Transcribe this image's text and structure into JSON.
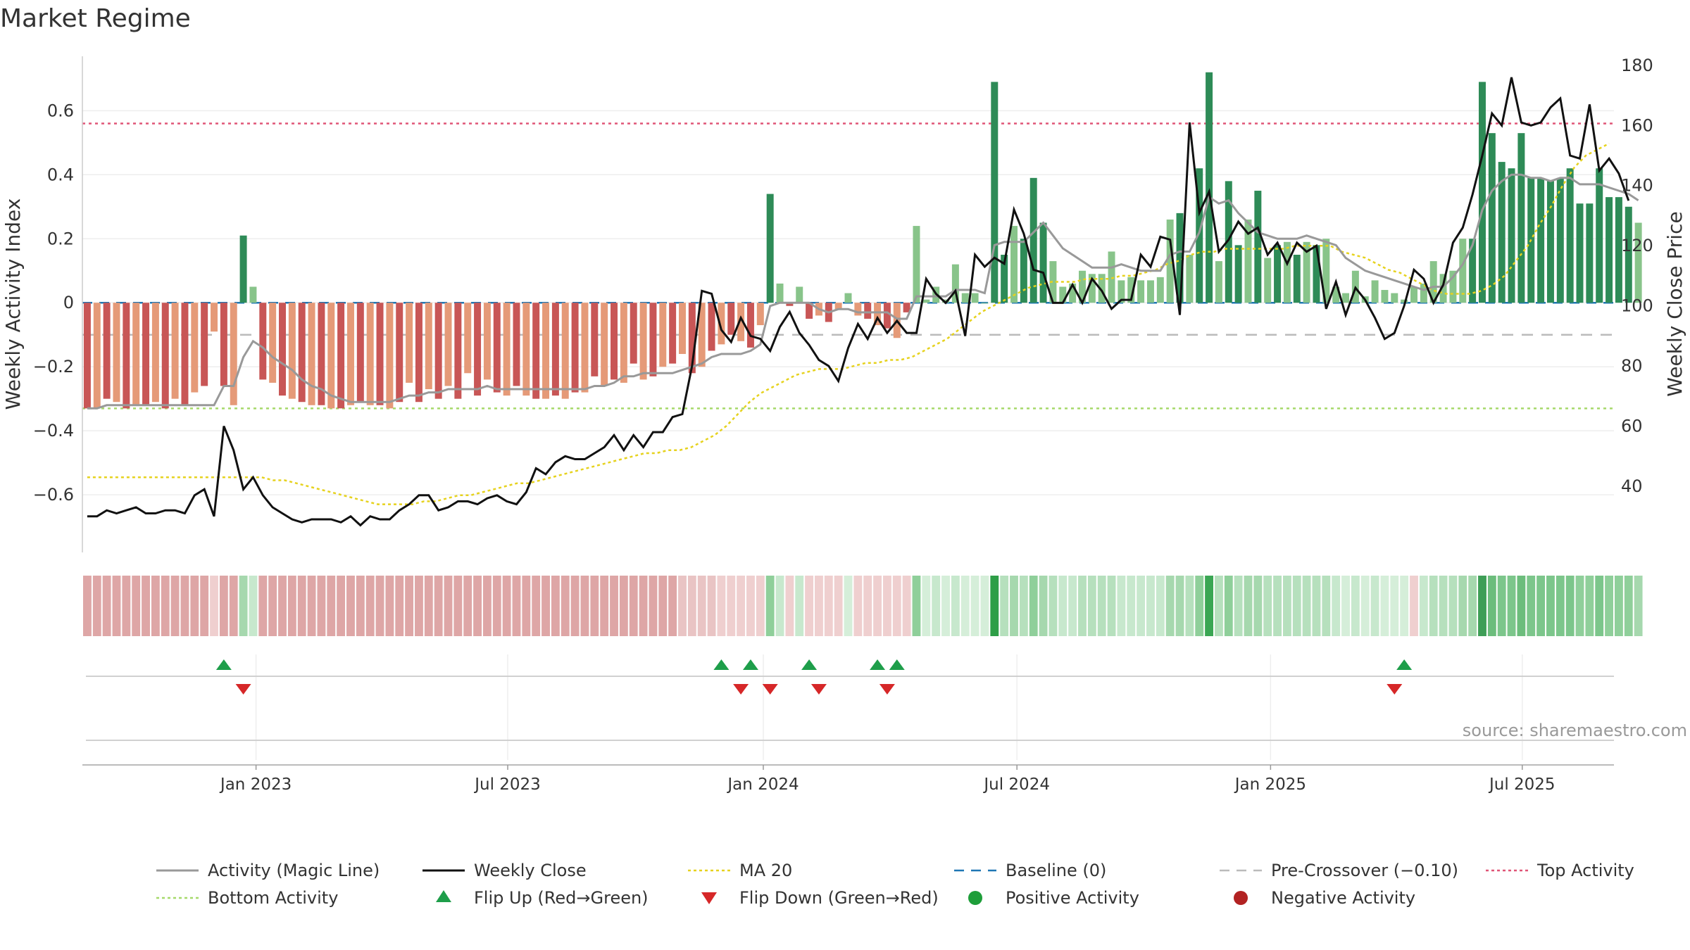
{
  "title": "Market Regime",
  "source": "source: sharemaestro.com",
  "chart_data": {
    "type": "bar",
    "ylabel_left": "Weekly Activity Index",
    "ylabel_right": "Weekly Close Price",
    "ylim_left": [
      -0.78,
      0.77
    ],
    "ylim_right": [
      18,
      183
    ],
    "yticks_left": [
      -0.6,
      -0.4,
      -0.2,
      0,
      0.2,
      0.4,
      0.6
    ],
    "yticks_left_labels": [
      "−0.6",
      "−0.4",
      "−0.2",
      "0",
      "0.2",
      "0.4",
      "0.6"
    ],
    "yticks_right": [
      40,
      60,
      80,
      100,
      120,
      140,
      160,
      180
    ],
    "x_tick_labels": [
      "Jan 2023",
      "Jul 2023",
      "Jan 2024",
      "Jul 2024",
      "Jan 2025",
      "Jul 2025"
    ],
    "x_tick_weeks": [
      17.3,
      43.1,
      69.3,
      95.3,
      121.3,
      147.1
    ],
    "num_weeks": 157,
    "top_activity": 0.56,
    "bottom_activity": -0.33,
    "baseline": 0,
    "pre_crossover": -0.1,
    "activity_index": [
      -0.33,
      -0.33,
      -0.3,
      -0.31,
      -0.33,
      -0.32,
      -0.32,
      -0.31,
      -0.33,
      -0.3,
      -0.32,
      -0.28,
      -0.26,
      -0.09,
      -0.26,
      -0.32,
      0.21,
      0.05,
      -0.24,
      -0.25,
      -0.29,
      -0.3,
      -0.31,
      -0.32,
      -0.32,
      -0.33,
      -0.33,
      -0.32,
      -0.31,
      -0.32,
      -0.32,
      -0.33,
      -0.31,
      -0.25,
      -0.31,
      -0.27,
      -0.3,
      -0.26,
      -0.3,
      -0.22,
      -0.29,
      -0.24,
      -0.28,
      -0.29,
      -0.26,
      -0.29,
      -0.3,
      -0.3,
      -0.29,
      -0.3,
      -0.28,
      -0.28,
      -0.23,
      -0.26,
      -0.24,
      -0.25,
      -0.19,
      -0.24,
      -0.23,
      -0.2,
      -0.19,
      -0.16,
      -0.22,
      -0.2,
      -0.15,
      -0.13,
      -0.1,
      -0.12,
      -0.14,
      -0.07,
      0.34,
      0.06,
      -0.01,
      0.05,
      -0.05,
      -0.04,
      -0.06,
      -0.02,
      0.03,
      -0.04,
      -0.05,
      -0.07,
      -0.08,
      -0.11,
      -0.03,
      0.24,
      0.01,
      0.05,
      0.01,
      0.12,
      0.03,
      0.03,
      0.0,
      0.69,
      0.15,
      0.24,
      0.2,
      0.39,
      0.25,
      0.13,
      0.05,
      0.06,
      0.1,
      0.09,
      0.09,
      0.16,
      0.07,
      0.08,
      0.07,
      0.07,
      0.08,
      0.26,
      0.28,
      0.15,
      0.42,
      0.72,
      0.13,
      0.38,
      0.18,
      0.26,
      0.35,
      0.14,
      0.18,
      0.19,
      0.15,
      0.19,
      0.18,
      0.2,
      0.05,
      0.03,
      0.1,
      0.02,
      0.07,
      0.04,
      0.03,
      0.01,
      0.05,
      0.06,
      0.13,
      0.09,
      0.1,
      0.2,
      0.2,
      0.69,
      0.53,
      0.44,
      0.42,
      0.53,
      0.39,
      0.39,
      0.38,
      0.39,
      0.42,
      0.31,
      0.31,
      0.42,
      0.33,
      0.33,
      0.3,
      0.25
    ],
    "magic_line": [
      -0.33,
      -0.33,
      -0.32,
      -0.32,
      -0.32,
      -0.32,
      -0.32,
      -0.32,
      -0.32,
      -0.32,
      -0.32,
      -0.32,
      -0.32,
      -0.32,
      -0.26,
      -0.26,
      -0.17,
      -0.12,
      -0.14,
      -0.17,
      -0.19,
      -0.21,
      -0.24,
      -0.26,
      -0.27,
      -0.29,
      -0.3,
      -0.31,
      -0.31,
      -0.31,
      -0.31,
      -0.31,
      -0.3,
      -0.29,
      -0.29,
      -0.28,
      -0.28,
      -0.27,
      -0.27,
      -0.27,
      -0.27,
      -0.26,
      -0.27,
      -0.27,
      -0.27,
      -0.27,
      -0.27,
      -0.27,
      -0.27,
      -0.27,
      -0.27,
      -0.27,
      -0.26,
      -0.26,
      -0.25,
      -0.23,
      -0.23,
      -0.22,
      -0.22,
      -0.22,
      -0.22,
      -0.21,
      -0.2,
      -0.19,
      -0.17,
      -0.16,
      -0.16,
      -0.16,
      -0.15,
      -0.13,
      -0.01,
      0.0,
      0.0,
      0.0,
      0.0,
      -0.02,
      -0.03,
      -0.02,
      -0.02,
      -0.03,
      -0.03,
      -0.03,
      -0.03,
      -0.05,
      -0.05,
      0.02,
      0.02,
      0.02,
      0.02,
      0.04,
      0.04,
      0.04,
      0.03,
      0.18,
      0.19,
      0.19,
      0.19,
      0.22,
      0.25,
      0.21,
      0.17,
      0.15,
      0.13,
      0.11,
      0.11,
      0.11,
      0.12,
      0.11,
      0.1,
      0.1,
      0.1,
      0.15,
      0.16,
      0.16,
      0.22,
      0.33,
      0.31,
      0.32,
      0.28,
      0.25,
      0.22,
      0.21,
      0.2,
      0.2,
      0.2,
      0.21,
      0.2,
      0.19,
      0.18,
      0.14,
      0.12,
      0.1,
      0.09,
      0.08,
      0.07,
      0.06,
      0.05,
      0.04,
      0.05,
      0.05,
      0.08,
      0.12,
      0.18,
      0.29,
      0.35,
      0.38,
      0.4,
      0.4,
      0.39,
      0.39,
      0.38,
      0.39,
      0.39,
      0.37,
      0.37,
      0.37,
      0.36,
      0.35,
      0.34,
      0.32
    ],
    "weekly_close": [
      30,
      30,
      32,
      31,
      32,
      33,
      31,
      31,
      32,
      32,
      31,
      37,
      39,
      30,
      60,
      52,
      39,
      43,
      37,
      33,
      31,
      29,
      28,
      29,
      29,
      29,
      28,
      30,
      27,
      30,
      29,
      29,
      32,
      34,
      37,
      37,
      32,
      33,
      35,
      35,
      34,
      36,
      37,
      35,
      34,
      38,
      46,
      44,
      48,
      50,
      49,
      49,
      51,
      53,
      57,
      52,
      57,
      53,
      58,
      58,
      63,
      64,
      80,
      105,
      104,
      92,
      88,
      96,
      90,
      89,
      85,
      93,
      98,
      91,
      87,
      82,
      80,
      75,
      86,
      94,
      89,
      96,
      91,
      95,
      91,
      91,
      109,
      104,
      101,
      105,
      90,
      117,
      113,
      116,
      114,
      132,
      124,
      112,
      111,
      101,
      101,
      107,
      101,
      109,
      105,
      99,
      102,
      102,
      117,
      113,
      123,
      122,
      97,
      161,
      131,
      138,
      118,
      122,
      128,
      124,
      126,
      117,
      121,
      114,
      121,
      118,
      120,
      99,
      108,
      97,
      106,
      102,
      96,
      89,
      91,
      100,
      112,
      109,
      101,
      107,
      121,
      126,
      137,
      150,
      164,
      160,
      176,
      161,
      160,
      161,
      166,
      169,
      150,
      149,
      167,
      145,
      149,
      144,
      135
    ],
    "ma20": [
      43,
      43,
      43,
      43,
      43,
      43,
      43,
      43,
      43,
      43,
      43,
      43,
      43,
      43,
      43,
      43,
      42,
      42,
      41,
      40,
      39,
      38,
      37,
      36,
      35,
      34,
      34,
      34,
      34,
      35,
      35,
      36,
      37,
      37,
      38,
      39,
      40,
      41,
      41,
      42,
      43,
      44,
      45,
      46,
      47,
      48,
      49,
      50,
      51,
      51,
      52,
      52,
      53,
      55,
      57,
      60,
      64,
      68,
      71,
      73,
      75,
      77,
      78,
      79,
      79,
      79,
      80,
      81,
      81,
      82,
      82,
      83,
      85,
      87,
      89,
      92,
      95,
      98,
      100,
      102,
      104,
      106,
      107,
      108,
      108,
      108,
      109,
      109,
      109,
      110,
      110,
      111,
      112,
      114,
      115,
      117,
      118,
      118,
      119,
      119,
      119,
      119,
      119,
      119,
      120,
      120,
      120,
      120,
      118,
      117,
      116,
      114,
      112,
      111,
      109,
      107,
      105,
      104,
      104,
      104,
      105,
      107,
      110,
      115,
      120,
      127,
      133,
      140,
      146,
      150,
      152,
      154
    ],
    "ma20_start_week": 0,
    "regime_strip_colors": [
      "#dea6a6",
      "#dea6a6",
      "#dea6a6",
      "#dea6a6",
      "#dea6a6",
      "#dea6a6",
      "#dea6a6",
      "#dea6a6",
      "#dea6a6",
      "#dea6a6",
      "#dea6a6",
      "#dea6a6",
      "#dea6a6",
      "#efcfcf",
      "#dea6a6",
      "#dea6a6",
      "#a6d8ae",
      "#c7e8cd",
      "#dea6a6",
      "#dea6a6",
      "#dea6a6",
      "#dea6a6",
      "#dea6a6",
      "#dea6a6",
      "#dea6a6",
      "#dea6a6",
      "#dea6a6",
      "#dea6a6",
      "#dea6a6",
      "#dea6a6",
      "#dea6a6",
      "#dea6a6",
      "#dea6a6",
      "#dea6a6",
      "#dea6a6",
      "#dea6a6",
      "#dea6a6",
      "#dea6a6",
      "#dea6a6",
      "#dea6a6",
      "#dea6a6",
      "#dea6a6",
      "#dea6a6",
      "#dea6a6",
      "#dea6a6",
      "#dea6a6",
      "#dea6a6",
      "#dea6a6",
      "#dea6a6",
      "#dea6a6",
      "#dea6a6",
      "#dea6a6",
      "#dea6a6",
      "#dea6a6",
      "#dea6a6",
      "#dea6a6",
      "#dea6a6",
      "#dea6a6",
      "#dea6a6",
      "#dea6a6",
      "#dea6a6",
      "#e9c4c4",
      "#e9c4c4",
      "#e9c4c4",
      "#e9c4c4",
      "#efcfcf",
      "#efcfcf",
      "#efcfcf",
      "#efcfcf",
      "#efcfcf",
      "#8fcf9a",
      "#c7e8cd",
      "#efcfcf",
      "#c7e8cd",
      "#efcfcf",
      "#efcfcf",
      "#efcfcf",
      "#efcfcf",
      "#d5eed9",
      "#efcfcf",
      "#efcfcf",
      "#efcfcf",
      "#efcfcf",
      "#efcfcf",
      "#efcfcf",
      "#8fcf9a",
      "#d5eed9",
      "#c7e8cd",
      "#d5eed9",
      "#c7e8cd",
      "#d5eed9",
      "#d5eed9",
      "#d5eed9",
      "#2e9e47",
      "#b6e0bd",
      "#a6d8ae",
      "#b6e0bd",
      "#8fcf9a",
      "#a6d8ae",
      "#b6e0bd",
      "#c7e8cd",
      "#c7e8cd",
      "#b6e0bd",
      "#b6e0bd",
      "#b6e0bd",
      "#b6e0bd",
      "#c7e8cd",
      "#c7e8cd",
      "#c7e8cd",
      "#c7e8cd",
      "#c7e8cd",
      "#a6d8ae",
      "#a6d8ae",
      "#b6e0bd",
      "#8fcf9a",
      "#3aa653",
      "#b6e0bd",
      "#8fcf9a",
      "#b6e0bd",
      "#a6d8ae",
      "#a6d8ae",
      "#b6e0bd",
      "#b6e0bd",
      "#b6e0bd",
      "#b6e0bd",
      "#b6e0bd",
      "#b6e0bd",
      "#b6e0bd",
      "#c7e8cd",
      "#d5eed9",
      "#c7e8cd",
      "#d5eed9",
      "#c7e8cd",
      "#d5eed9",
      "#d5eed9",
      "#d5eed9",
      "#efcfcf",
      "#c7e8cd",
      "#b6e0bd",
      "#b6e0bd",
      "#b6e0bd",
      "#a6d8ae",
      "#a6d8ae",
      "#3e9e56",
      "#6cbd7c",
      "#7cc68b",
      "#7cc68b",
      "#6cbd7c",
      "#7cc68b",
      "#7cc68b",
      "#7cc68b",
      "#7cc68b",
      "#7cc68b",
      "#8fcf9a",
      "#8fcf9a",
      "#7cc68b",
      "#8fcf9a",
      "#8fcf9a",
      "#8fcf9a",
      "#a6d8ae"
    ],
    "flip_up_weeks": [
      14,
      65,
      68,
      74,
      81,
      83,
      135
    ],
    "flip_down_weeks": [
      16,
      67,
      70,
      75,
      82,
      134
    ],
    "colors": {
      "strong_pos": "#2e8b57",
      "weak_pos": "#88c48a",
      "strong_neg": "#c85656",
      "weak_neg": "#e59a78",
      "magic_line": "#999999",
      "close": "#111111",
      "ma20": "#e6d21e",
      "baseline": "#1f77b4",
      "pre_crossover": "#bbbbbb",
      "top_activity": "#e05577",
      "bottom_activity": "#a6d96a",
      "flip_up": "#1e9e4a",
      "flip_down": "#d62728",
      "pos_marker": "#1e9e3a",
      "neg_marker": "#b22222"
    },
    "legend": [
      {
        "label": "Activity (Magic Line)",
        "kind": "line-gray"
      },
      {
        "label": "Weekly Close",
        "kind": "line-black"
      },
      {
        "label": "MA 20",
        "kind": "dotted-yellow"
      },
      {
        "label": "Baseline (0)",
        "kind": "dashed-blue"
      },
      {
        "label": "Pre-Crossover (−0.10)",
        "kind": "dashed-gray"
      },
      {
        "label": "Top Activity",
        "kind": "dotted-pink"
      },
      {
        "label": "Bottom Activity",
        "kind": "dotted-green"
      },
      {
        "label": "Flip Up (Red→Green)",
        "kind": "tri-up"
      },
      {
        "label": "Flip Down (Green→Red)",
        "kind": "tri-down"
      },
      {
        "label": "Positive Activity",
        "kind": "dot-green"
      },
      {
        "label": "Negative Activity",
        "kind": "dot-red"
      }
    ]
  }
}
